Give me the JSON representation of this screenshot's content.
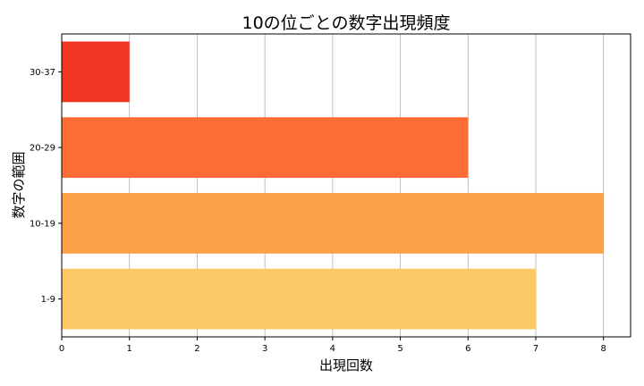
{
  "chart_data": {
    "type": "bar",
    "orientation": "horizontal",
    "title": "10の位ごとの数字出現頻度",
    "xlabel": "出現回数",
    "ylabel": "数字の範囲",
    "categories": [
      "1-9",
      "10-19",
      "20-29",
      "30-37"
    ],
    "values": [
      7,
      8,
      6,
      1
    ],
    "colors": [
      "#fdc967",
      "#fca049",
      "#fd6c35",
      "#f03523"
    ],
    "xlim": [
      0,
      8.4
    ],
    "xticks": [
      0,
      1,
      2,
      3,
      4,
      5,
      6,
      7,
      8
    ],
    "grid": "vertical"
  }
}
